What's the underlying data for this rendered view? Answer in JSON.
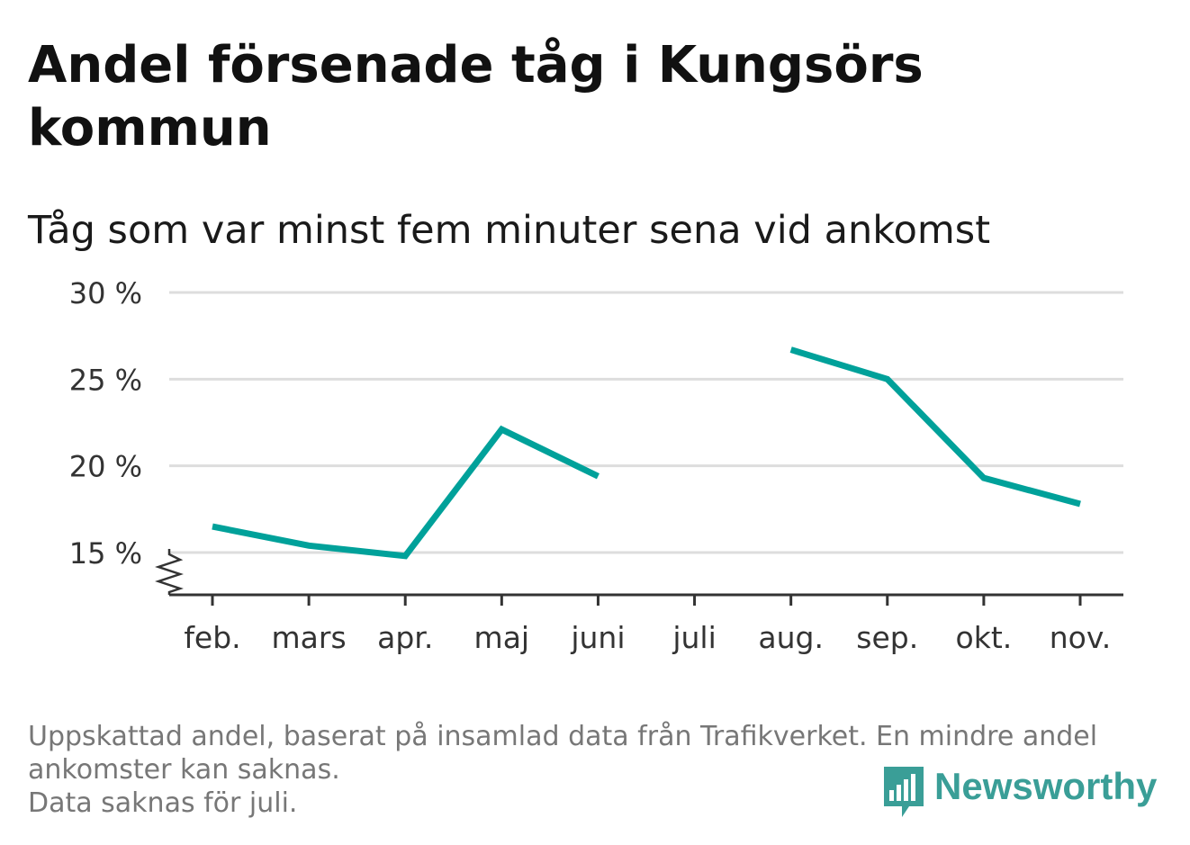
{
  "title": "Andel försenade tåg i Kungsörs kommun",
  "subtitle": "Tåg som var minst fem minuter sena vid ankomst",
  "footnote": {
    "line1": "Uppskattad andel, baserat på insamlad data från Trafikverket. En mindre andel",
    "line2": "ankomster kan saknas.",
    "line3": "Data saknas för juli."
  },
  "brand": {
    "name": "Newsworthy",
    "color": "#3a9e97",
    "icon": "newsworthy-bar-chart-icon"
  },
  "chart_data": {
    "type": "line",
    "categories": [
      "feb.",
      "mars",
      "apr.",
      "maj",
      "juni",
      "juli",
      "aug.",
      "sep.",
      "okt.",
      "nov."
    ],
    "series": [
      {
        "values": [
          16.5,
          15.4,
          14.8,
          22.1,
          19.4,
          null,
          26.7,
          25.0,
          19.3,
          17.8
        ]
      }
    ],
    "ylim": [
      15,
      30
    ],
    "yticks": [
      15,
      20,
      25,
      30
    ],
    "ytick_labels": [
      "15 %",
      "20 %",
      "25 %",
      "30 %"
    ],
    "y_axis_break": true,
    "grid": true,
    "line_color": "#00a19a",
    "grid_color": "#dddddd",
    "axis_color": "#333333",
    "xlabel": "",
    "ylabel": ""
  }
}
